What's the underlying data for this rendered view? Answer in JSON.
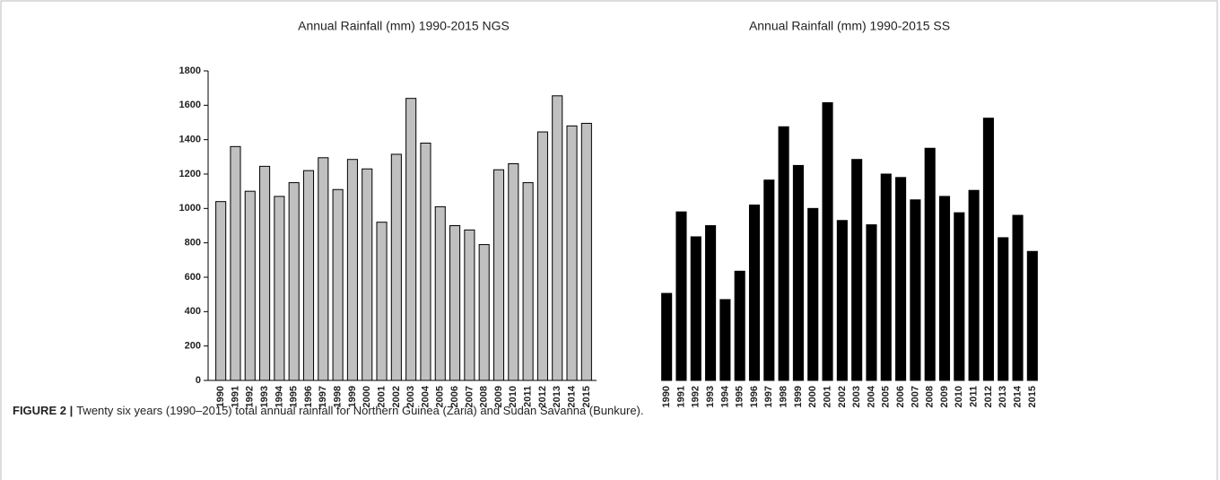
{
  "chart_data": [
    {
      "type": "bar",
      "title": "Annual Rainfall (mm) 1990-2015 NGS",
      "categories": [
        "1990",
        "1991",
        "1992",
        "1993",
        "1994",
        "1995",
        "1996",
        "1997",
        "1998",
        "1999",
        "2000",
        "2001",
        "2002",
        "2003",
        "2004",
        "2005",
        "2006",
        "2007",
        "2008",
        "2009",
        "2010",
        "2011",
        "2012",
        "2013",
        "2014",
        "2015"
      ],
      "values": [
        1040,
        1360,
        1100,
        1245,
        1070,
        1150,
        1220,
        1295,
        1110,
        1285,
        1230,
        920,
        1315,
        1640,
        1380,
        1010,
        900,
        875,
        790,
        1225,
        1260,
        1150,
        1445,
        1655,
        1480,
        1495
      ],
      "color": "#c0c0c0",
      "ylim": [
        0,
        1800
      ],
      "yticks": [
        0,
        200,
        400,
        600,
        800,
        1000,
        1200,
        1400,
        1600,
        1800
      ]
    },
    {
      "type": "bar",
      "title": "Annual Rainfall (mm) 1990-2015 SS",
      "categories": [
        "1990",
        "1991",
        "1992",
        "1993",
        "1994",
        "1995",
        "1996",
        "1997",
        "1998",
        "1999",
        "2000",
        "2001",
        "2002",
        "2003",
        "2004",
        "2005",
        "2006",
        "2007",
        "2008",
        "2009",
        "2010",
        "2011",
        "2012",
        "2013",
        "2014",
        "2015"
      ],
      "values": [
        506,
        980,
        835,
        900,
        470,
        635,
        1020,
        1165,
        1475,
        1250,
        1000,
        1615,
        930,
        1285,
        905,
        1200,
        1180,
        1050,
        1350,
        1070,
        975,
        1105,
        1525,
        830,
        960,
        750
      ],
      "color": "#000000",
      "ylim": [
        0,
        1800
      ]
    }
  ],
  "caption": {
    "label": "FIGURE 2 |",
    "text": "Twenty six years (1990–2015) total annual rainfall for Northern Guinea (Zaria) and Sudan Savanna (Bunkure)."
  }
}
